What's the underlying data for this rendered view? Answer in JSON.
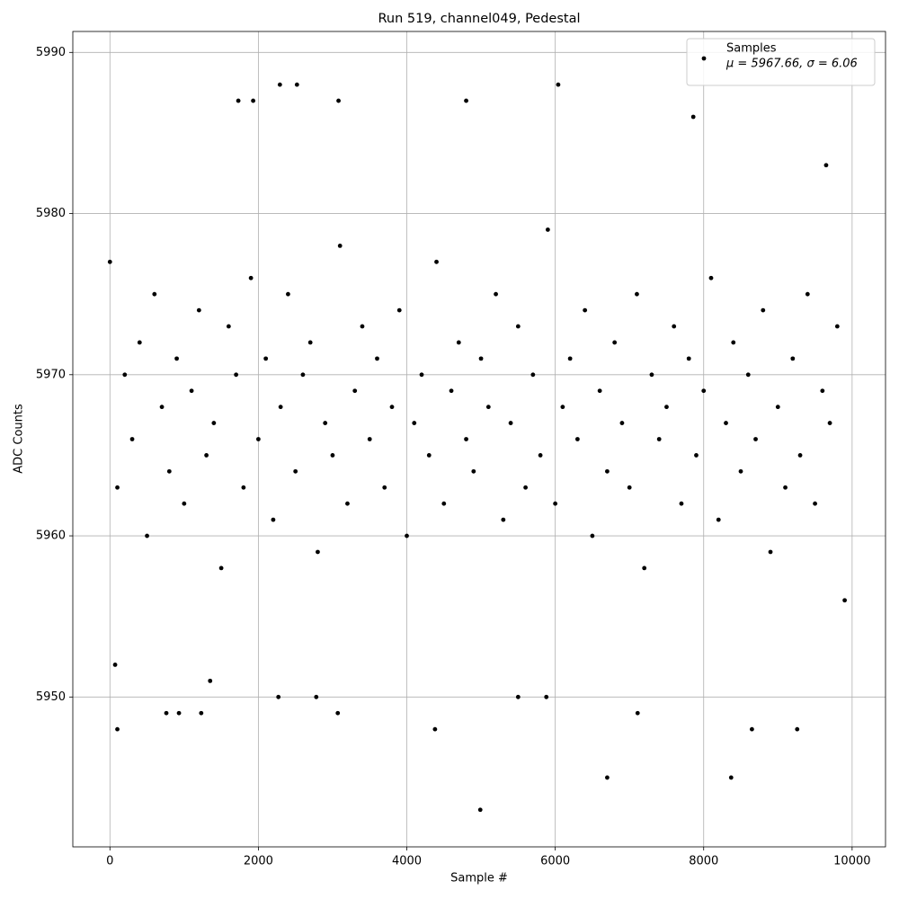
{
  "chart_data": {
    "type": "scatter",
    "title": "Run 519, channel049, Pedestal",
    "x_label": "Sample #",
    "y_label": "ADC Counts",
    "xlim": [
      -500,
      10450
    ],
    "ylim": [
      5940.7,
      5991.3
    ],
    "xticks": [
      0,
      2000,
      4000,
      6000,
      8000,
      10000
    ],
    "yticks": [
      5950,
      5960,
      5970,
      5980,
      5990
    ],
    "grid": true,
    "legend": "upper right",
    "series": [
      {
        "name": "Samples",
        "label": "μ = 5967.66, σ = 6.06",
        "color": "#000000",
        "x": [
          0,
          100,
          200,
          300,
          400,
          500,
          600,
          700,
          800,
          900,
          1000,
          1100,
          1200,
          1300,
          1400,
          1500,
          1600,
          1700,
          1800,
          1900,
          2000,
          2100,
          2200,
          2300,
          2400,
          2500,
          2600,
          2700,
          2800,
          2900,
          3000,
          3100,
          3200,
          3300,
          3400,
          3500,
          3600,
          3700,
          3800,
          3900,
          4000,
          4100,
          4200,
          4300,
          4400,
          4500,
          4600,
          4700,
          4800,
          4900,
          5000,
          5100,
          5200,
          5300,
          5400,
          5500,
          5600,
          5700,
          5800,
          5900,
          6000,
          6100,
          6200,
          6300,
          6400,
          6500,
          6600,
          6700,
          6800,
          6900,
          7000,
          7100,
          7200,
          7300,
          7400,
          7500,
          7600,
          7700,
          7800,
          7900,
          8000,
          8100,
          8200,
          8300,
          8400,
          8500,
          8600,
          8700,
          8800,
          8900,
          9000,
          9100,
          9200,
          9300,
          9400,
          9500,
          9600,
          9700,
          9800,
          9900,
          70,
          100,
          760,
          930,
          1230,
          1350,
          2270,
          2290,
          2520,
          2780,
          3070,
          3080,
          4380,
          4990,
          4800,
          6040,
          5500,
          5880,
          6700,
          7110,
          8370,
          8650,
          9260,
          1730,
          1930,
          7860,
          9650
        ],
        "values": [
          5977,
          5963,
          5970,
          5966,
          5972,
          5960,
          5975,
          5968,
          5964,
          5971,
          5962,
          5969,
          5974,
          5965,
          5967,
          5958,
          5973,
          5970,
          5963,
          5976,
          5966,
          5971,
          5961,
          5968,
          5975,
          5964,
          5970,
          5972,
          5959,
          5967,
          5965,
          5978,
          5962,
          5969,
          5973,
          5966,
          5971,
          5963,
          5968,
          5974,
          5960,
          5967,
          5970,
          5965,
          5977,
          5962,
          5969,
          5972,
          5966,
          5964,
          5971,
          5968,
          5975,
          5961,
          5967,
          5973,
          5963,
          5970,
          5965,
          5979,
          5962,
          5968,
          5971,
          5966,
          5974,
          5960,
          5969,
          5964,
          5972,
          5967,
          5963,
          5975,
          5958,
          5970,
          5966,
          5968,
          5973,
          5962,
          5971,
          5965,
          5969,
          5976,
          5961,
          5967,
          5972,
          5964,
          5970,
          5966,
          5974,
          5959,
          5968,
          5963,
          5971,
          5965,
          5975,
          5962,
          5969,
          5967,
          5973,
          5956,
          5952,
          5948,
          5949,
          5949,
          5949,
          5951,
          5950,
          5988,
          5988,
          5950,
          5949,
          5987,
          5948,
          5943,
          5987,
          5988,
          5950,
          5950,
          5945,
          5949,
          5945,
          5948,
          5948,
          5987,
          5987,
          5986,
          5983
        ]
      }
    ]
  }
}
